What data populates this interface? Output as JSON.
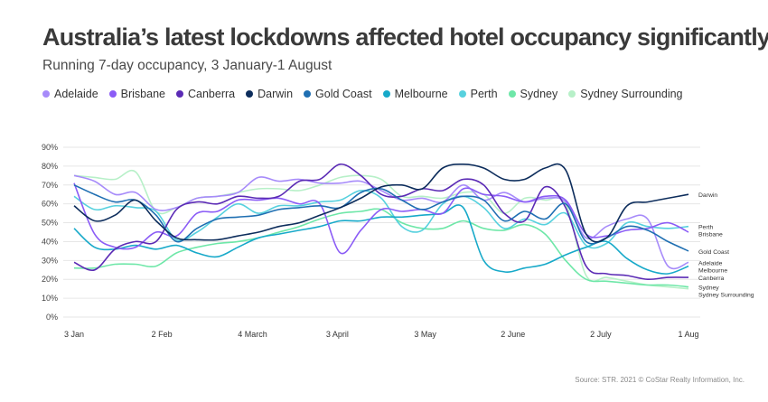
{
  "title": "Australia’s latest lockdowns affected hotel occupancy significantly",
  "subtitle": "Running 7-day occupancy, 3 January-1 August",
  "source": "Source: STR. 2021 © CoStar Realty Information, Inc.",
  "chart_data": {
    "type": "line",
    "title": "Australia’s latest lockdowns affected hotel occupancy significantly",
    "subtitle": "Running 7-day occupancy, 3 January-1 August",
    "xlabel": "",
    "ylabel": "",
    "x": [
      0,
      7,
      14,
      21,
      28,
      35,
      42,
      49,
      56,
      63,
      70,
      77,
      84,
      91,
      98,
      105,
      112,
      119,
      126,
      133,
      140,
      147,
      154,
      161,
      168,
      175,
      182,
      189,
      196,
      203,
      210
    ],
    "x_ticks": [
      {
        "day": 0,
        "label": "3 Jan"
      },
      {
        "day": 30,
        "label": "2 Feb"
      },
      {
        "day": 61,
        "label": "4 March"
      },
      {
        "day": 90,
        "label": "3 April"
      },
      {
        "day": 120,
        "label": "3 May"
      },
      {
        "day": 150,
        "label": "2 June"
      },
      {
        "day": 180,
        "label": "2 July"
      },
      {
        "day": 210,
        "label": "1 Aug"
      }
    ],
    "ylim": [
      0,
      90
    ],
    "y_ticks": [
      "0%",
      "10%",
      "20%",
      "30%",
      "40%",
      "50%",
      "60%",
      "70%",
      "80%",
      "90%"
    ],
    "grid": "horizontal",
    "legend": "top",
    "series": [
      {
        "name": "Adelaide",
        "color": "#a78bfa",
        "end_label": "Adelaide",
        "values": [
          75,
          72,
          65,
          66,
          57,
          58,
          63,
          64,
          66,
          74,
          72,
          73,
          71,
          71,
          72,
          67,
          62,
          63,
          61,
          70,
          62,
          66,
          61,
          63,
          61,
          42,
          48,
          52,
          52,
          27,
          29
        ]
      },
      {
        "name": "Brisbane",
        "color": "#8b5cf6",
        "end_label": "Brisbane",
        "values": [
          71,
          44,
          37,
          37,
          45,
          43,
          55,
          56,
          62,
          62,
          63,
          60,
          60,
          34,
          46,
          57,
          56,
          57,
          55,
          68,
          65,
          64,
          61,
          64,
          62,
          44,
          43,
          46,
          47,
          50,
          45
        ]
      },
      {
        "name": "Canberra",
        "color": "#5b2bb5",
        "end_label": "Canberra",
        "values": [
          29,
          25,
          36,
          40,
          40,
          57,
          61,
          60,
          64,
          63,
          64,
          72,
          73,
          81,
          75,
          65,
          64,
          68,
          67,
          73,
          70,
          55,
          51,
          69,
          58,
          27,
          23,
          22,
          20,
          21,
          21
        ]
      },
      {
        "name": "Darwin",
        "color": "#0d2d5c",
        "end_label": "Darwin",
        "values": [
          59,
          51,
          54,
          62,
          51,
          42,
          41,
          41,
          43,
          45,
          48,
          50,
          54,
          58,
          63,
          69,
          70,
          68,
          79,
          81,
          79,
          73,
          73,
          79,
          78,
          44,
          42,
          59,
          61,
          63,
          65
        ]
      },
      {
        "name": "Gold Coast",
        "color": "#1f6fb2",
        "end_label": "Gold Coast",
        "values": [
          70,
          65,
          61,
          62,
          54,
          40,
          47,
          52,
          53,
          54,
          57,
          58,
          59,
          58,
          66,
          68,
          62,
          57,
          61,
          64,
          62,
          51,
          56,
          52,
          60,
          40,
          42,
          48,
          46,
          40,
          35
        ]
      },
      {
        "name": "Melbourne",
        "color": "#17a9c9",
        "end_label": "Melbourne",
        "values": [
          47,
          37,
          36,
          38,
          36,
          38,
          34,
          32,
          37,
          42,
          44,
          46,
          48,
          51,
          51,
          53,
          53,
          54,
          55,
          58,
          30,
          24,
          26,
          28,
          33,
          37,
          40,
          31,
          25,
          23,
          27
        ]
      },
      {
        "name": "Perth",
        "color": "#57d1de",
        "end_label": "Perth",
        "values": [
          64,
          57,
          59,
          58,
          56,
          41,
          45,
          53,
          60,
          55,
          59,
          59,
          61,
          62,
          67,
          63,
          48,
          46,
          60,
          64,
          58,
          47,
          52,
          49,
          55,
          38,
          39,
          50,
          48,
          47,
          48
        ]
      },
      {
        "name": "Sydney",
        "color": "#6ee7a8",
        "end_label": "Sydney",
        "values": [
          26,
          26,
          28,
          28,
          27,
          34,
          37,
          39,
          40,
          42,
          45,
          48,
          52,
          55,
          56,
          57,
          50,
          47,
          47,
          51,
          47,
          46,
          49,
          44,
          30,
          20,
          19,
          18,
          17,
          17,
          16
        ]
      },
      {
        "name": "Sydney Surrounding",
        "color": "#b7f0c8",
        "end_label": "Sydney Surrounding",
        "values": [
          75,
          74,
          73,
          77,
          56,
          58,
          63,
          64,
          66,
          68,
          68,
          67,
          70,
          74,
          75,
          73,
          64,
          64,
          63,
          66,
          65,
          55,
          63,
          62,
          60,
          22,
          21,
          19,
          17,
          16,
          15
        ]
      }
    ]
  }
}
